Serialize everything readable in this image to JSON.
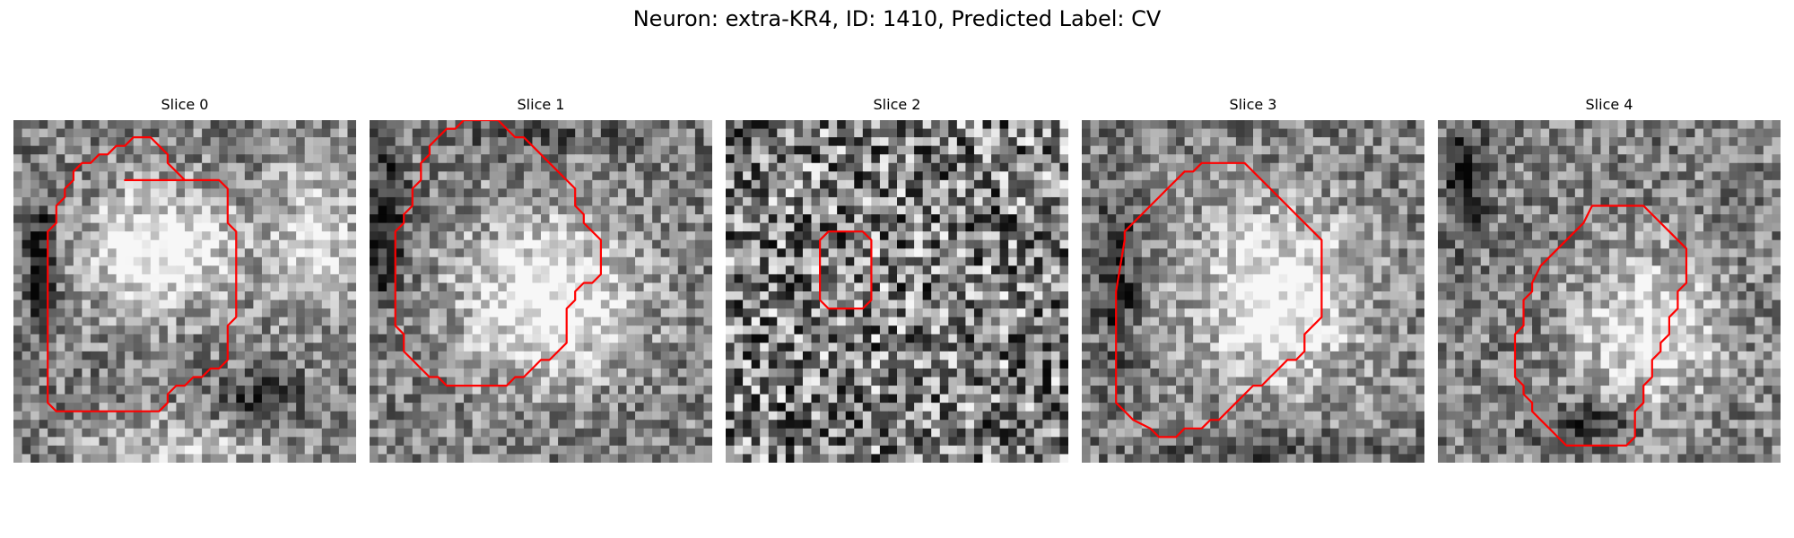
{
  "figure": {
    "title": "Neuron: extra-KR4, ID: 1410, Predicted Label: CV"
  },
  "panels": [
    {
      "title": "Slice 0",
      "image": "grayscale-microscopy-crop",
      "outline_color": "#ff0000",
      "image_params": {
        "seed": 11,
        "contrast": 0.55,
        "blobs": [
          [
            0.43,
            0.38,
            0.28,
            0.22,
            0.55
          ],
          [
            0.88,
            0.33,
            0.16,
            0.3,
            0.35
          ],
          [
            0.5,
            0.95,
            0.35,
            0.12,
            0.25
          ],
          [
            0.08,
            0.4,
            0.06,
            0.22,
            -0.45
          ],
          [
            0.72,
            0.82,
            0.18,
            0.1,
            -0.25
          ]
        ]
      },
      "outline": [
        [
          13,
          7
        ],
        [
          24,
          7
        ],
        [
          25,
          8
        ],
        [
          25,
          12
        ],
        [
          26,
          13
        ],
        [
          26,
          23
        ],
        [
          25,
          24
        ],
        [
          25,
          28
        ],
        [
          24,
          29
        ],
        [
          23,
          29
        ],
        [
          22,
          30
        ],
        [
          21,
          30
        ],
        [
          20,
          31
        ],
        [
          19,
          31
        ],
        [
          18,
          32
        ],
        [
          18,
          33
        ],
        [
          17,
          34
        ],
        [
          5,
          34
        ],
        [
          4,
          33
        ],
        [
          4,
          13
        ],
        [
          5,
          12
        ],
        [
          5,
          10
        ],
        [
          6,
          9
        ],
        [
          6,
          8
        ],
        [
          7,
          7
        ],
        [
          7,
          6
        ],
        [
          8,
          5
        ],
        [
          9,
          5
        ],
        [
          10,
          4
        ],
        [
          11,
          4
        ],
        [
          12,
          3
        ],
        [
          13,
          3
        ],
        [
          14,
          2
        ],
        [
          15,
          2
        ],
        [
          16,
          2
        ],
        [
          17,
          3
        ],
        [
          18,
          4
        ],
        [
          18,
          5
        ],
        [
          19,
          6
        ],
        [
          20,
          7
        ],
        [
          13,
          7
        ]
      ]
    },
    {
      "title": "Slice 1",
      "image": "grayscale-microscopy-crop",
      "outline_color": "#ff0000",
      "image_params": {
        "seed": 23,
        "contrast": 0.55,
        "blobs": [
          [
            0.52,
            0.52,
            0.32,
            0.3,
            0.55
          ],
          [
            0.05,
            0.3,
            0.07,
            0.28,
            -0.45
          ],
          [
            0.5,
            0.05,
            0.4,
            0.06,
            -0.15
          ]
        ]
      },
      "outline": [
        [
          7,
          3
        ],
        [
          8,
          2
        ],
        [
          9,
          1
        ],
        [
          10,
          1
        ],
        [
          11,
          0
        ],
        [
          15,
          0
        ],
        [
          16,
          1
        ],
        [
          17,
          2
        ],
        [
          18,
          2
        ],
        [
          19,
          3
        ],
        [
          20,
          4
        ],
        [
          21,
          5
        ],
        [
          22,
          6
        ],
        [
          23,
          7
        ],
        [
          24,
          8
        ],
        [
          24,
          9
        ],
        [
          24,
          10
        ],
        [
          25,
          11
        ],
        [
          25,
          12
        ],
        [
          26,
          13
        ],
        [
          27,
          14
        ],
        [
          27,
          18
        ],
        [
          26,
          19
        ],
        [
          25,
          19
        ],
        [
          24,
          20
        ],
        [
          24,
          21
        ],
        [
          23,
          22
        ],
        [
          23,
          26
        ],
        [
          22,
          27
        ],
        [
          21,
          28
        ],
        [
          20,
          28
        ],
        [
          19,
          29
        ],
        [
          18,
          30
        ],
        [
          17,
          30
        ],
        [
          16,
          31
        ],
        [
          9,
          31
        ],
        [
          8,
          30
        ],
        [
          7,
          30
        ],
        [
          6,
          29
        ],
        [
          5,
          28
        ],
        [
          4,
          27
        ],
        [
          4,
          25
        ],
        [
          3,
          24
        ],
        [
          3,
          22
        ],
        [
          3,
          14
        ],
        [
          3,
          13
        ],
        [
          4,
          12
        ],
        [
          4,
          11
        ],
        [
          5,
          10
        ],
        [
          5,
          8
        ],
        [
          6,
          7
        ],
        [
          6,
          5
        ],
        [
          7,
          4
        ],
        [
          7,
          3
        ]
      ]
    },
    {
      "title": "Slice 2",
      "image": "grayscale-microscopy-crop",
      "outline_color": "#ff0000",
      "image_params": {
        "seed": 37,
        "contrast": 0.95,
        "blobs": []
      },
      "outline": [
        [
          11,
          14
        ],
        [
          12,
          13
        ],
        [
          16,
          13
        ],
        [
          17,
          14
        ],
        [
          17,
          21
        ],
        [
          16,
          22
        ],
        [
          12,
          22
        ],
        [
          11,
          21
        ],
        [
          11,
          14
        ]
      ]
    },
    {
      "title": "Slice 3",
      "image": "grayscale-microscopy-crop",
      "outline_color": "#ff0000",
      "image_params": {
        "seed": 49,
        "contrast": 0.55,
        "blobs": [
          [
            0.57,
            0.52,
            0.3,
            0.32,
            0.55
          ],
          [
            0.1,
            0.45,
            0.07,
            0.3,
            -0.4
          ],
          [
            0.55,
            0.96,
            0.4,
            0.06,
            -0.2
          ]
        ]
      },
      "outline": [
        [
          12,
          6
        ],
        [
          13,
          6
        ],
        [
          14,
          5
        ],
        [
          15,
          5
        ],
        [
          16,
          5
        ],
        [
          19,
          5
        ],
        [
          20,
          6
        ],
        [
          21,
          7
        ],
        [
          22,
          8
        ],
        [
          23,
          9
        ],
        [
          24,
          10
        ],
        [
          25,
          11
        ],
        [
          26,
          12
        ],
        [
          27,
          13
        ],
        [
          28,
          14
        ],
        [
          28,
          23
        ],
        [
          27,
          24
        ],
        [
          26,
          25
        ],
        [
          26,
          27
        ],
        [
          25,
          28
        ],
        [
          24,
          28
        ],
        [
          23,
          29
        ],
        [
          22,
          30
        ],
        [
          21,
          31
        ],
        [
          20,
          31
        ],
        [
          19,
          32
        ],
        [
          18,
          33
        ],
        [
          17,
          34
        ],
        [
          16,
          35
        ],
        [
          15,
          35
        ],
        [
          14,
          36
        ],
        [
          12,
          36
        ],
        [
          11,
          37
        ],
        [
          10,
          37
        ],
        [
          9,
          37
        ],
        [
          8,
          36
        ],
        [
          6,
          35
        ],
        [
          5,
          34
        ],
        [
          4,
          33
        ],
        [
          4,
          28
        ],
        [
          4,
          20
        ],
        [
          5,
          14
        ],
        [
          5,
          13
        ],
        [
          6,
          12
        ],
        [
          7,
          11
        ],
        [
          8,
          10
        ],
        [
          9,
          9
        ],
        [
          10,
          8
        ],
        [
          11,
          7
        ],
        [
          12,
          6
        ]
      ]
    },
    {
      "title": "Slice 4",
      "image": "grayscale-microscopy-crop",
      "outline_color": "#ff0000",
      "image_params": {
        "seed": 61,
        "contrast": 0.55,
        "blobs": [
          [
            0.62,
            0.62,
            0.26,
            0.28,
            0.45
          ],
          [
            0.08,
            0.18,
            0.07,
            0.2,
            -0.45
          ],
          [
            0.45,
            0.88,
            0.2,
            0.08,
            -0.3
          ]
        ]
      },
      "outline": [
        [
          18,
          10
        ],
        [
          19,
          10
        ],
        [
          20,
          10
        ],
        [
          24,
          10
        ],
        [
          25,
          11
        ],
        [
          26,
          12
        ],
        [
          27,
          13
        ],
        [
          28,
          14
        ],
        [
          29,
          15
        ],
        [
          29,
          19
        ],
        [
          28,
          20
        ],
        [
          28,
          22
        ],
        [
          27,
          23
        ],
        [
          27,
          25
        ],
        [
          26,
          26
        ],
        [
          26,
          27
        ],
        [
          25,
          28
        ],
        [
          25,
          30
        ],
        [
          24,
          31
        ],
        [
          24,
          33
        ],
        [
          23,
          34
        ],
        [
          23,
          37
        ],
        [
          22,
          38
        ],
        [
          15,
          38
        ],
        [
          14,
          37
        ],
        [
          13,
          36
        ],
        [
          12,
          35
        ],
        [
          11,
          34
        ],
        [
          11,
          33
        ],
        [
          10,
          32
        ],
        [
          10,
          31
        ],
        [
          9,
          30
        ],
        [
          9,
          28
        ],
        [
          9,
          25
        ],
        [
          10,
          24
        ],
        [
          10,
          21
        ],
        [
          11,
          20
        ],
        [
          11,
          19
        ],
        [
          12,
          17
        ],
        [
          13,
          16
        ],
        [
          14,
          15
        ],
        [
          15,
          14
        ],
        [
          16,
          13
        ],
        [
          17,
          12
        ],
        [
          18,
          10
        ]
      ]
    }
  ]
}
